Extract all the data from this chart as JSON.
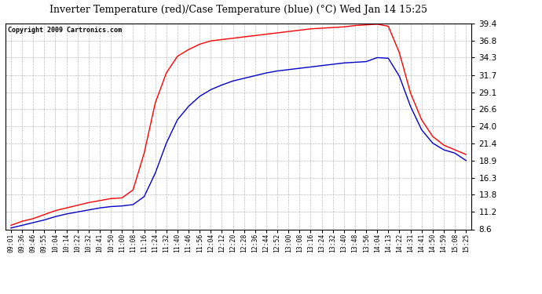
{
  "title": "Inverter Temperature (red)/Case Temperature (blue) (°C) Wed Jan 14 15:25",
  "copyright": "Copyright 2009 Cartronics.com",
  "yticks": [
    8.6,
    11.2,
    13.8,
    16.3,
    18.9,
    21.4,
    24.0,
    26.6,
    29.1,
    31.7,
    34.3,
    36.8,
    39.4
  ],
  "ymin": 8.6,
  "ymax": 39.4,
  "red_color": "#ff0000",
  "blue_color": "#0000cc",
  "bg_color": "#ffffff",
  "grid_color": "#bbbbbb",
  "x_labels": [
    "09:01",
    "09:36",
    "09:46",
    "09:55",
    "10:04",
    "10:14",
    "10:22",
    "10:32",
    "10:41",
    "10:50",
    "11:00",
    "11:08",
    "11:16",
    "11:24",
    "11:32",
    "11:40",
    "11:46",
    "11:56",
    "12:04",
    "12:12",
    "12:20",
    "12:28",
    "12:36",
    "12:44",
    "12:52",
    "13:00",
    "13:08",
    "13:16",
    "13:24",
    "13:32",
    "13:40",
    "13:48",
    "13:56",
    "14:04",
    "14:13",
    "14:22",
    "14:31",
    "14:41",
    "14:50",
    "14:59",
    "15:08",
    "15:25"
  ],
  "red_values": [
    9.2,
    9.8,
    10.2,
    10.8,
    11.4,
    11.8,
    12.2,
    12.6,
    12.9,
    13.2,
    13.3,
    14.5,
    20.0,
    27.5,
    32.0,
    34.5,
    35.5,
    36.3,
    36.8,
    37.0,
    37.2,
    37.4,
    37.6,
    37.8,
    38.0,
    38.2,
    38.4,
    38.6,
    38.7,
    38.8,
    38.9,
    39.1,
    39.2,
    39.3,
    39.0,
    35.0,
    29.0,
    25.0,
    22.5,
    21.2,
    20.5,
    19.8
  ],
  "blue_values": [
    8.8,
    9.2,
    9.6,
    10.0,
    10.5,
    10.9,
    11.2,
    11.5,
    11.8,
    12.0,
    12.1,
    12.3,
    13.5,
    17.0,
    21.5,
    25.0,
    27.0,
    28.5,
    29.5,
    30.2,
    30.8,
    31.2,
    31.6,
    32.0,
    32.3,
    32.5,
    32.7,
    32.9,
    33.1,
    33.3,
    33.5,
    33.6,
    33.7,
    34.3,
    34.2,
    31.5,
    27.0,
    23.5,
    21.5,
    20.5,
    20.0,
    18.9
  ],
  "title_fontsize": 9.0,
  "copyright_fontsize": 6.0,
  "ytick_fontsize": 7.5,
  "xtick_fontsize": 5.8
}
